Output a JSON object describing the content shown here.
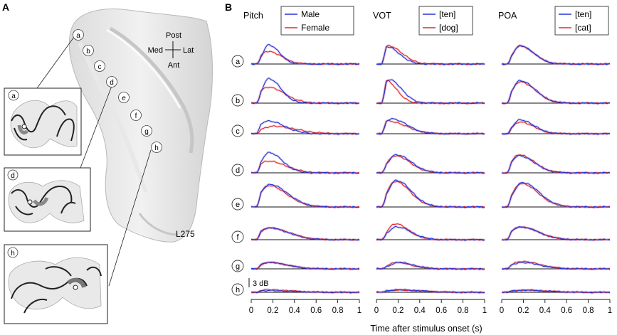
{
  "panels": {
    "a": "A",
    "b": "B"
  },
  "brain": {
    "id": "L275",
    "orientation": {
      "post": "Post",
      "ant": "Ant",
      "med": "Med",
      "lat": "Lat"
    },
    "electrodes": [
      "a",
      "b",
      "c",
      "d",
      "e",
      "f",
      "g",
      "h"
    ],
    "insets": [
      "a",
      "d",
      "h"
    ]
  },
  "chart_data": {
    "type": "line",
    "title": "",
    "xlabel": "Time after stimulus onset (s)",
    "x_ticks": [
      "0",
      "0.2",
      "0.4",
      "0.6",
      "0.8",
      "1"
    ],
    "xlim": [
      0,
      1
    ],
    "scale_bar": "3 dB",
    "rows": [
      "a",
      "b",
      "c",
      "d",
      "e",
      "f",
      "g",
      "h"
    ],
    "columns": [
      {
        "title": "Pitch",
        "legend": [
          {
            "name": "Male",
            "color": "#2a34d6"
          },
          {
            "name": "Female",
            "color": "#e32a2a"
          }
        ],
        "rows": {
          "a": {
            "s1": [
              0.9,
              0.16,
              0.07
            ],
            "s2": [
              0.6,
              0.15,
              0.09
            ]
          },
          "b": {
            "s1": [
              1.15,
              0.16,
              0.08
            ],
            "s2": [
              0.75,
              0.15,
              0.11
            ]
          },
          "c": {
            "s1": [
              0.6,
              0.15,
              0.11
            ],
            "s2": [
              0.35,
              0.2,
              0.15
            ]
          },
          "d": {
            "s1": [
              0.95,
              0.16,
              0.09
            ],
            "s2": [
              0.55,
              0.15,
              0.12
            ]
          },
          "e": {
            "s1": [
              1.05,
              0.17,
              0.12
            ],
            "s2": [
              1.0,
              0.16,
              0.12
            ]
          },
          "f": {
            "s1": [
              0.55,
              0.16,
              0.13
            ],
            "s2": [
              0.55,
              0.17,
              0.13
            ]
          },
          "g": {
            "s1": [
              0.3,
              0.16,
              0.12
            ],
            "s2": [
              0.3,
              0.17,
              0.12
            ]
          },
          "h": {
            "s1": [
              0.08,
              0.15,
              0.15
            ],
            "s2": [
              0.12,
              0.15,
              0.15
            ]
          }
        }
      },
      {
        "title": "VOT",
        "legend": [
          {
            "name": "[ten]",
            "color": "#2a34d6"
          },
          {
            "name": "[dog]",
            "color": "#e32a2a"
          }
        ],
        "rows": {
          "a": {
            "s1": [
              0.8,
              0.1,
              0.08
            ],
            "s2": [
              0.85,
              0.11,
              0.09
            ]
          },
          "b": {
            "s1": [
              1.1,
              0.12,
              0.08
            ],
            "s2": [
              1.05,
              0.09,
              0.07
            ]
          },
          "c": {
            "s1": [
              0.7,
              0.14,
              0.1
            ],
            "s2": [
              0.6,
              0.1,
              0.12
            ]
          },
          "d": {
            "s1": [
              0.85,
              0.18,
              0.1
            ],
            "s2": [
              0.8,
              0.17,
              0.1
            ]
          },
          "e": {
            "s1": [
              1.25,
              0.18,
              0.1
            ],
            "s2": [
              1.2,
              0.17,
              0.1
            ]
          },
          "f": {
            "s1": [
              0.6,
              0.18,
              0.1
            ],
            "s2": [
              0.75,
              0.17,
              0.09
            ]
          },
          "g": {
            "s1": [
              0.3,
              0.2,
              0.1
            ],
            "s2": [
              0.3,
              0.18,
              0.1
            ]
          },
          "h": {
            "s1": [
              0.12,
              0.2,
              0.15
            ],
            "s2": [
              0.1,
              0.2,
              0.15
            ]
          }
        }
      },
      {
        "title": "POA",
        "legend": [
          {
            "name": "[ten]",
            "color": "#2a34d6"
          },
          {
            "name": "[cat]",
            "color": "#e32a2a"
          }
        ],
        "rows": {
          "a": {
            "s1": [
              0.85,
              0.17,
              0.09
            ],
            "s2": [
              0.85,
              0.17,
              0.09
            ]
          },
          "b": {
            "s1": [
              1.05,
              0.17,
              0.1
            ],
            "s2": [
              1.0,
              0.17,
              0.1
            ]
          },
          "c": {
            "s1": [
              0.65,
              0.17,
              0.09
            ],
            "s2": [
              0.55,
              0.17,
              0.09
            ]
          },
          "d": {
            "s1": [
              0.8,
              0.16,
              0.1
            ],
            "s2": [
              0.85,
              0.16,
              0.1
            ]
          },
          "e": {
            "s1": [
              1.15,
              0.19,
              0.11
            ],
            "s2": [
              1.1,
              0.18,
              0.11
            ]
          },
          "f": {
            "s1": [
              0.6,
              0.17,
              0.12
            ],
            "s2": [
              0.6,
              0.17,
              0.12
            ]
          },
          "g": {
            "s1": [
              0.3,
              0.18,
              0.12
            ],
            "s2": [
              0.35,
              0.18,
              0.12
            ]
          },
          "h": {
            "s1": [
              0.1,
              0.2,
              0.15
            ],
            "s2": [
              0.1,
              0.2,
              0.15
            ]
          }
        }
      }
    ]
  }
}
